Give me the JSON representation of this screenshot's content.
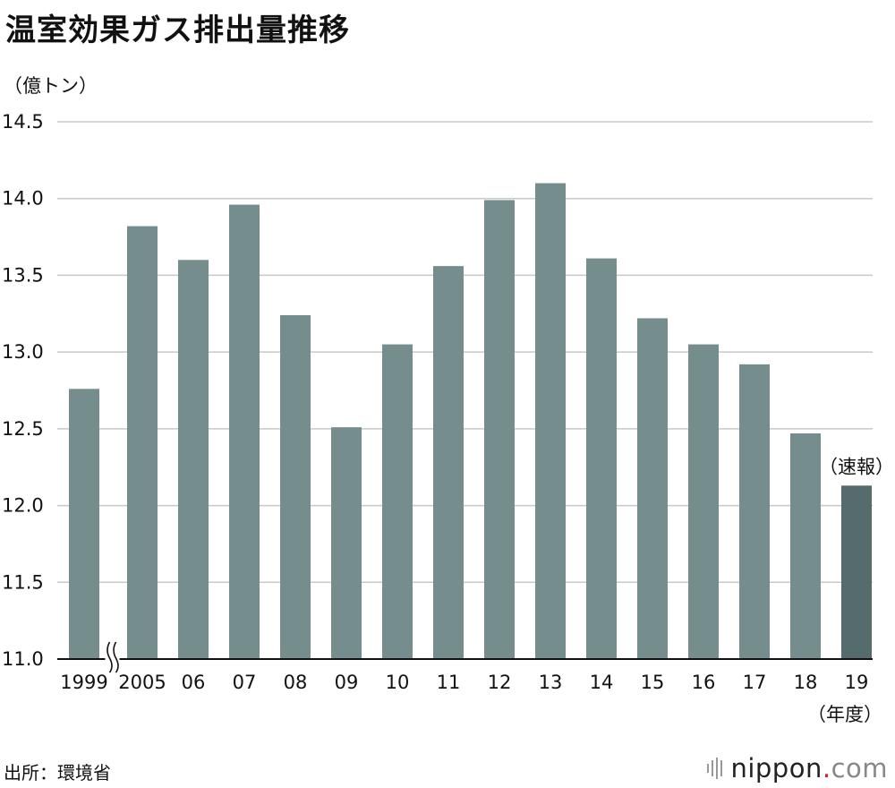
{
  "chart_data": {
    "type": "bar",
    "title": "温室効果ガス排出量推移",
    "ylabel": "（億トン）",
    "xlabel": "（年度）",
    "categories": [
      "1999",
      "2005",
      "06",
      "07",
      "08",
      "09",
      "10",
      "11",
      "12",
      "13",
      "14",
      "15",
      "16",
      "17",
      "18",
      "19"
    ],
    "values": [
      12.76,
      13.82,
      13.6,
      13.96,
      13.24,
      12.51,
      13.05,
      13.56,
      13.99,
      14.1,
      13.61,
      13.22,
      13.05,
      12.92,
      12.47,
      12.13
    ],
    "yticks": [
      "14.5",
      "14.0",
      "13.5",
      "13.0",
      "12.5",
      "12.0",
      "11.5",
      "11.0"
    ],
    "ylim": [
      11.0,
      14.5
    ],
    "grid": true,
    "axis_break_between": [
      "1999",
      "2005"
    ],
    "highlight_index": 15,
    "annotation": "（速報）",
    "colors": {
      "bar": "#758d8d",
      "bar_highlight": "#566b6b",
      "grid": "#c8c8c8"
    }
  },
  "footer": {
    "source": "出所：環境省",
    "logo_text": "nippon",
    "logo_dot": ".",
    "logo_suffix": "com"
  }
}
